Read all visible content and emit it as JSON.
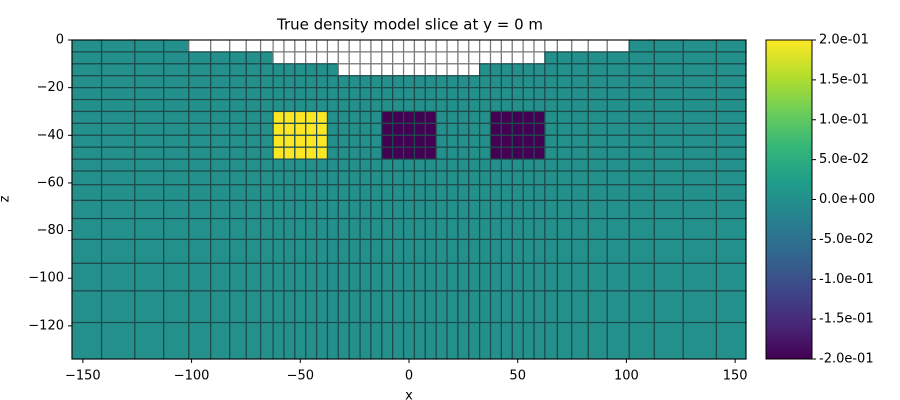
{
  "chart_data": {
    "type": "mesh",
    "title": "True density model slice at y = 0 m",
    "xlabel": "x",
    "ylabel": "z",
    "xlim": [
      -155,
      155
    ],
    "ylim": [
      -133.9,
      0
    ],
    "xticks": [
      {
        "value": -150,
        "label": "−150"
      },
      {
        "value": -100,
        "label": "−100"
      },
      {
        "value": -50,
        "label": "−50"
      },
      0,
      50,
      100,
      150
    ],
    "yticks": [
      0,
      {
        "value": -20,
        "label": "−20"
      },
      {
        "value": -40,
        "label": "−40"
      },
      {
        "value": -60,
        "label": "−60"
      },
      {
        "value": -80,
        "label": "−80"
      },
      {
        "value": -100,
        "label": "−100"
      },
      {
        "value": -120,
        "label": "−120"
      }
    ],
    "x_edges": [
      -155,
      -141.4,
      -126.1,
      -112.83,
      -101.26,
      -91.2,
      -82.45,
      -74.85,
      -68.25,
      -62.5,
      -57.5,
      -52.5,
      -47.5,
      -42.5,
      -37.5,
      -32.5,
      -27.5,
      -22.5,
      -17.5,
      -12.5,
      -7.5,
      -2.5,
      2.5,
      7.5,
      12.5,
      17.5,
      22.5,
      27.5,
      32.5,
      37.5,
      42.5,
      47.5,
      52.5,
      57.5,
      62.5,
      68.25,
      74.85,
      82.45,
      91.2,
      101.26,
      112.83,
      126.1,
      141.4,
      155
    ],
    "z_edges": [
      0,
      -5,
      -10,
      -15,
      -20,
      -25,
      -30,
      -35,
      -40,
      -45,
      -50,
      -55,
      -60.75,
      -67.35,
      -74.95,
      -83.7,
      -93.76,
      -105.3,
      -118.6,
      -133.9
    ],
    "background": 0,
    "blocks": [
      {
        "x": [
          -62.5,
          -37.5
        ],
        "z": [
          -30,
          -50
        ],
        "value": 0.2
      },
      {
        "x": [
          -12.5,
          12.5
        ],
        "z": [
          -30,
          -50
        ],
        "value": -0.2
      },
      {
        "x": [
          37.5,
          62.5
        ],
        "z": [
          -30,
          -50
        ],
        "value": -0.2
      }
    ],
    "inactive": [
      {
        "x": [
          -101.26,
          101.26
        ],
        "z": [
          0,
          -5
        ]
      },
      {
        "x": [
          -62.5,
          62.5
        ],
        "z": [
          -5,
          -10
        ]
      },
      {
        "x": [
          -32.5,
          32.5
        ],
        "z": [
          -10,
          -15
        ]
      }
    ],
    "clim": [
      -0.2,
      0.2
    ],
    "colormap": [
      "#440154",
      "#482878",
      "#3e4989",
      "#31688e",
      "#26828e",
      "#1f9e89",
      "#35b779",
      "#6ece58",
      "#b5de2b",
      "#fde725"
    ],
    "cell_edge_color": "#1e4a4c",
    "inactive_edge_color": "#7a7a7a",
    "cbar_ticks": [
      {
        "value": 0.2,
        "label": "2.0e-01"
      },
      {
        "value": 0.15,
        "label": "1.5e-01"
      },
      {
        "value": 0.1,
        "label": "1.0e-01"
      },
      {
        "value": 0.05,
        "label": "5.0e-02"
      },
      {
        "value": 0,
        "label": "0.0e+00"
      },
      {
        "value": -0.05,
        "label": "-5.0e-02"
      },
      {
        "value": -0.1,
        "label": "-1.0e-01"
      },
      {
        "value": -0.15,
        "label": "-1.5e-01"
      },
      {
        "value": -0.2,
        "label": "-2.0e-01"
      }
    ]
  }
}
